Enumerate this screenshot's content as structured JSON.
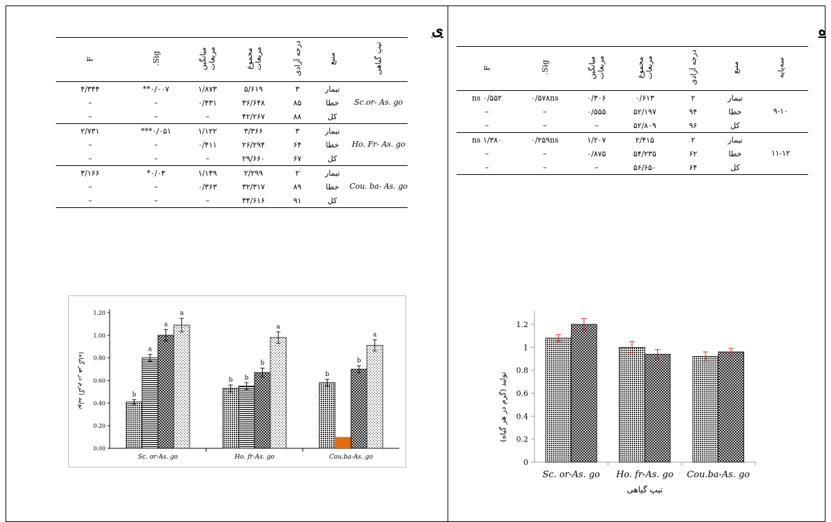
{
  "left": {
    "label": "ی",
    "table": {
      "headers": [
        "تیپ گیاهی",
        "منبع",
        "درجه آزادی",
        "مجموع مربعات",
        "میانگین مربعات",
        "Sig.",
        "F"
      ],
      "groups": [
        {
          "label": "Sc.or- As. go",
          "rows": [
            [
              "تیمار",
              "۳",
              "۵/۶۱۹",
              "۱/۸۷۳",
              "۰/۰۰۷**",
              "۴/۳۴۴"
            ],
            [
              "خطا",
              "۸۵",
              "۳۶/۶۴۸",
              "۰/۴۳۱",
              "–",
              "–"
            ],
            [
              "کل",
              "۸۸",
              "۴۲/۲۶۷",
              "–",
              "–",
              "–"
            ]
          ]
        },
        {
          "label": "Ho. Fr- As. go",
          "rows": [
            [
              "تیمار",
              "۳",
              "۳/۳۶۶",
              "۱/۱۲۲",
              "۰/۰۵۱***",
              "۲/۷۳۱"
            ],
            [
              "خطا",
              "۶۴",
              "۲۶/۲۹۴",
              "۰/۴۱۱",
              "–",
              "–"
            ],
            [
              "کل",
              "۶۷",
              "۲۹/۶۶۰",
              "–",
              "–",
              "–"
            ]
          ]
        },
        {
          "label": "Cou. ba- As. go",
          "rows": [
            [
              "تیمار",
              "۲",
              "۲/۲۹۹",
              "۱/۱۴۹",
              "۰/۰۴*",
              "۳/۱۶۶"
            ],
            [
              "خطا",
              "۸۹",
              "۳۲/۳۱۷",
              "۰/۳۶۳",
              "–",
              "–"
            ],
            [
              "کل",
              "۹۱",
              "۳۴/۶۱۶",
              "–",
              "–",
              "–"
            ]
          ]
        }
      ]
    },
    "chart_data": {
      "type": "bar",
      "categories": [
        "Sc. or-As. go",
        "Ho. fr-As. go",
        "Cou.ba-As. go"
      ],
      "ylabel": "تولید (گرم در هر گیاه)",
      "ylim": [
        0,
        1.2
      ],
      "yticks": [
        "0.00",
        "0.20",
        "0.40",
        "0.60",
        "0.80",
        "1.00",
        "1.20"
      ],
      "grid": false,
      "groups": [
        {
          "bars": [
            {
              "value": 0.41,
              "err": 0.02,
              "letter": "b"
            },
            {
              "value": 0.8,
              "err": 0.03,
              "letter": "a"
            },
            {
              "value": 1.0,
              "err": 0.05,
              "letter": "a"
            },
            {
              "value": 1.09,
              "err": 0.06,
              "letter": "a"
            }
          ]
        },
        {
          "bars": [
            {
              "value": 0.53,
              "err": 0.03,
              "letter": "b"
            },
            {
              "value": 0.55,
              "err": 0.03,
              "letter": "b"
            },
            {
              "value": 0.67,
              "err": 0.04,
              "letter": "b"
            },
            {
              "value": 0.98,
              "err": 0.05,
              "letter": "a"
            }
          ]
        },
        {
          "bars": [
            {
              "value": 0.58,
              "err": 0.03,
              "letter": "b"
            },
            {
              "value": 0.1,
              "err": 0,
              "letter": ""
            },
            {
              "value": 0.7,
              "err": 0.03,
              "letter": "b"
            },
            {
              "value": 0.91,
              "err": 0.05,
              "letter": "a"
            }
          ]
        }
      ],
      "colors": {
        "accent": "#e46c0a",
        "ink": "#000000"
      }
    }
  },
  "right": {
    "label": "ه",
    "table": {
      "headers": [
        "سه‌پایه",
        "منبع",
        "درجه آزادی",
        "مجموع مربعات",
        "میانگین مربعات",
        "Sig.",
        "F"
      ],
      "groups": [
        {
          "label": "۹-۱۰",
          "rows": [
            [
              "تیمار",
              "۲",
              "۰/۶۱۳",
              "۰/۳۰۶",
              "۰/۵۷۸ns",
              "۰/۵۵۲ ns"
            ],
            [
              "خطا",
              "۹۴",
              "۵۲/۱۹۷",
              "۰/۵۵۵",
              "–",
              "–"
            ],
            [
              "کل",
              "۹۶",
              "۵۲/۸۰۹",
              "–",
              "–",
              "–"
            ]
          ]
        },
        {
          "label": "۱۱-۱۲",
          "rows": [
            [
              "تیمار",
              "۲",
              "۲/۴۱۵",
              "۱/۲۰۷",
              "۰/۲۵۹ns",
              "۱/۳۸۰ ns"
            ],
            [
              "خطا",
              "۶۲",
              "۵۴/۲۳۵",
              "۰/۸۷۵",
              "–",
              "–"
            ],
            [
              "کل",
              "۶۴",
              "۵۶/۶۵۰",
              "–",
              "–",
              "–"
            ]
          ]
        }
      ]
    },
    "chart_data": {
      "type": "bar",
      "categories": [
        "Sc. or-As. go",
        "Ho. fr-As. go",
        "Cou.ba-As. go"
      ],
      "xlabel": "تیپ گیاهی",
      "ylabel": "تولید (گرم در هر گیاه)",
      "ylim": [
        0,
        1.2
      ],
      "yticks": [
        "0",
        "0.2",
        "0.4",
        "0.6",
        "0.8",
        "1",
        "1.2"
      ],
      "grid": false,
      "groups": [
        {
          "bars": [
            {
              "value": 1.08,
              "err": 0.03
            },
            {
              "value": 1.2,
              "err": 0.05
            }
          ]
        },
        {
          "bars": [
            {
              "value": 1.0,
              "err": 0.05
            },
            {
              "value": 0.94,
              "err": 0.04
            }
          ]
        },
        {
          "bars": [
            {
              "value": 0.92,
              "err": 0.04
            },
            {
              "value": 0.96,
              "err": 0.03
            }
          ]
        }
      ],
      "colors": {
        "error": "#e02020",
        "ink": "#000000"
      }
    }
  }
}
